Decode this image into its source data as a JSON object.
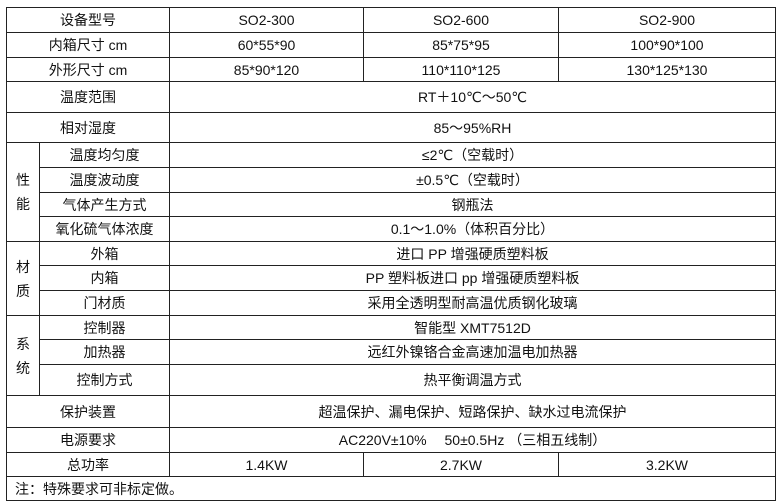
{
  "header": {
    "label": "设备型号",
    "models": [
      "SO2-300",
      "SO2-600",
      "SO2-900"
    ]
  },
  "inner_size": {
    "label": "内箱尺寸 cm",
    "values": [
      "60*55*90",
      "85*75*95",
      "100*90*100"
    ]
  },
  "outer_size": {
    "label": "外形尺寸 cm",
    "values": [
      "85*90*120",
      "110*110*125",
      "130*125*130"
    ]
  },
  "temp_range": {
    "label": "温度范围",
    "value": "RT＋10℃～50℃"
  },
  "humidity": {
    "label": "相对湿度",
    "value": "85～95%RH"
  },
  "performance": {
    "group": "性能",
    "rows": [
      {
        "label": "温度均匀度",
        "value": "≤2℃（空载时）"
      },
      {
        "label": "温度波动度",
        "value": "±0.5℃（空载时）"
      },
      {
        "label": "气体产生方式",
        "value": "钢瓶法"
      },
      {
        "label": "氧化硫气体浓度",
        "value": "0.1～1.0%（体积百分比）"
      }
    ]
  },
  "material": {
    "group": "材质",
    "rows": [
      {
        "label": "外箱",
        "value": "进口 PP 增强硬质塑料板"
      },
      {
        "label": "内箱",
        "value": "PP 塑料板进口 pp 增强硬质塑料板"
      },
      {
        "label": "门材质",
        "value": "采用全透明型耐高温优质钢化玻璃"
      }
    ]
  },
  "system": {
    "group": "系统",
    "rows": [
      {
        "label": "控制器",
        "value": "智能型 XMT7512D"
      },
      {
        "label": "加热器",
        "value": "远红外镍铬合金高速加温电加热器"
      },
      {
        "label": "控制方式",
        "value": "热平衡调温方式"
      }
    ]
  },
  "protection": {
    "label": "保护装置",
    "value": "超温保护、漏电保护、短路保护、缺水过电流保护"
  },
  "power_supply": {
    "label": "电源要求",
    "value": "AC220V±10%　 50±0.5Hz （三相五线制）"
  },
  "total_power": {
    "label": "总功率",
    "values": [
      "1.4KW",
      "2.7KW",
      "3.2KW"
    ]
  },
  "note": "注：特殊要求可非标定做。"
}
